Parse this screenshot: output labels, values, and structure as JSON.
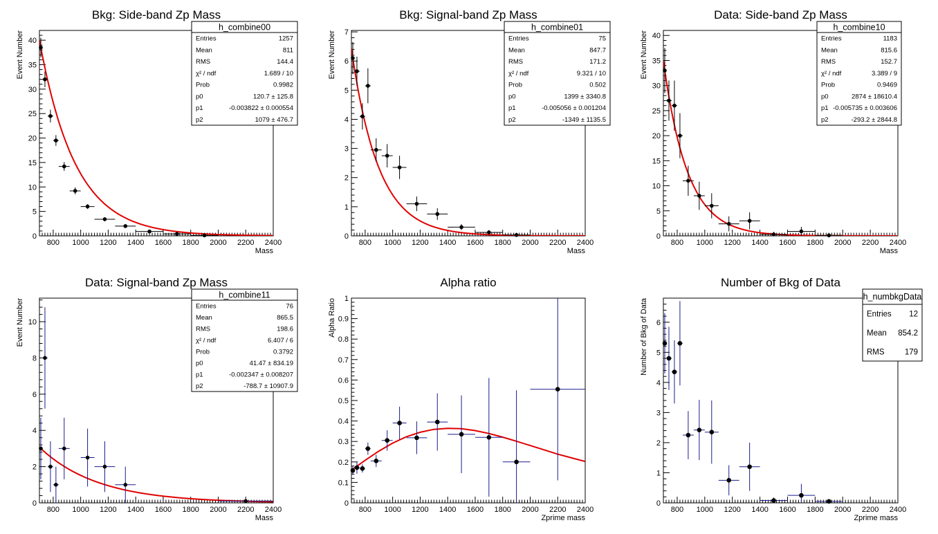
{
  "chart_data": [
    {
      "type": "scatter",
      "title": "Bkg: Side-band Zp Mass",
      "xlabel": "Mass",
      "ylabel": "Event Number",
      "xlim": [
        700,
        2400
      ],
      "ylim": [
        0,
        42
      ],
      "xticks": [
        800,
        1000,
        1200,
        1400,
        1600,
        1800,
        2000,
        2200,
        2400
      ],
      "yticks": [
        0,
        5,
        10,
        15,
        20,
        25,
        30,
        35,
        40
      ],
      "fit": {
        "p0": 120.7,
        "p1": -0.003822,
        "p2": 1079,
        "model": "exp"
      },
      "points": [
        {
          "x": 710,
          "y": 38.5,
          "xerr": 10,
          "yerr": 2.0
        },
        {
          "x": 740,
          "y": 32.0,
          "xerr": 20,
          "yerr": 1.6
        },
        {
          "x": 780,
          "y": 24.5,
          "xerr": 20,
          "yerr": 1.3
        },
        {
          "x": 820,
          "y": 19.5,
          "xerr": 20,
          "yerr": 1.1
        },
        {
          "x": 880,
          "y": 14.2,
          "xerr": 40,
          "yerr": 0.9
        },
        {
          "x": 960,
          "y": 9.2,
          "xerr": 40,
          "yerr": 0.7
        },
        {
          "x": 1050,
          "y": 6.0,
          "xerr": 50,
          "yerr": 0.5
        },
        {
          "x": 1175,
          "y": 3.4,
          "xerr": 75,
          "yerr": 0.4
        },
        {
          "x": 1325,
          "y": 2.0,
          "xerr": 75,
          "yerr": 0.3
        },
        {
          "x": 1500,
          "y": 0.9,
          "xerr": 100,
          "yerr": 0.2
        },
        {
          "x": 1700,
          "y": 0.4,
          "xerr": 100,
          "yerr": 0.15
        },
        {
          "x": 1900,
          "y": 0.1,
          "xerr": 100,
          "yerr": 0.1
        }
      ],
      "stats": {
        "name": "h_combine00",
        "rows": [
          [
            "Entries",
            "1257"
          ],
          [
            "Mean",
            "811"
          ],
          [
            "RMS",
            "144.4"
          ],
          [
            "χ² / ndf",
            "1.689 / 10"
          ],
          [
            "Prob",
            "0.9982"
          ],
          [
            "p0",
            "120.7 ± 125.8"
          ],
          [
            "p1",
            "-0.003822 ± 0.000554"
          ],
          [
            "p2",
            "1079 ± 476.7"
          ]
        ]
      }
    },
    {
      "type": "scatter",
      "title": "Bkg: Signal-band Zp Mass",
      "xlabel": "Mass",
      "ylabel": "Event Number",
      "xlim": [
        700,
        2400
      ],
      "ylim": [
        0,
        7.05
      ],
      "xticks": [
        800,
        1000,
        1200,
        1400,
        1600,
        1800,
        2000,
        2200,
        2400
      ],
      "yticks": [
        0,
        1,
        2,
        3,
        4,
        5,
        6,
        7
      ],
      "fit": {
        "p0": 1399,
        "p1": -0.005056,
        "p2": -1349,
        "model": "exp"
      },
      "points": [
        {
          "x": 710,
          "y": 6.1,
          "xerr": 10,
          "yerr": 0.55
        },
        {
          "x": 740,
          "y": 5.65,
          "xerr": 20,
          "yerr": 0.5
        },
        {
          "x": 780,
          "y": 4.1,
          "xerr": 20,
          "yerr": 0.45
        },
        {
          "x": 820,
          "y": 5.15,
          "xerr": 20,
          "yerr": 0.6
        },
        {
          "x": 880,
          "y": 2.95,
          "xerr": 40,
          "yerr": 0.4
        },
        {
          "x": 960,
          "y": 2.75,
          "xerr": 40,
          "yerr": 0.4
        },
        {
          "x": 1050,
          "y": 2.35,
          "xerr": 50,
          "yerr": 0.4
        },
        {
          "x": 1175,
          "y": 1.1,
          "xerr": 75,
          "yerr": 0.25
        },
        {
          "x": 1325,
          "y": 0.75,
          "xerr": 75,
          "yerr": 0.2
        },
        {
          "x": 1500,
          "y": 0.3,
          "xerr": 100,
          "yerr": 0.1
        },
        {
          "x": 1700,
          "y": 0.12,
          "xerr": 100,
          "yerr": 0.08
        },
        {
          "x": 1900,
          "y": 0.03,
          "xerr": 100,
          "yerr": 0.05
        }
      ],
      "stats": {
        "name": "h_combine01",
        "rows": [
          [
            "Entries",
            "75"
          ],
          [
            "Mean",
            "847.7"
          ],
          [
            "RMS",
            "171.2"
          ],
          [
            "χ² / ndf",
            "9.321 / 10"
          ],
          [
            "Prob",
            "0.502"
          ],
          [
            "p0",
            "1399 ± 3340.8"
          ],
          [
            "p1",
            "-0.005056 ± 0.001204"
          ],
          [
            "p2",
            "-1349 ± 1135.5"
          ]
        ]
      }
    },
    {
      "type": "scatter",
      "title": "Data: Side-band Zp Mass",
      "xlabel": "Mass",
      "ylabel": "Event Number",
      "xlim": [
        700,
        2400
      ],
      "ylim": [
        0,
        41
      ],
      "xticks": [
        800,
        1000,
        1200,
        1400,
        1600,
        1800,
        2000,
        2200,
        2400
      ],
      "yticks": [
        0,
        5,
        10,
        15,
        20,
        25,
        30,
        35,
        40
      ],
      "fit": {
        "p0": 2874,
        "p1": -0.005735,
        "p2": -293.2,
        "model": "exp"
      },
      "points": [
        {
          "x": 710,
          "y": 33.0,
          "xerr": 10,
          "yerr": 4.5
        },
        {
          "x": 740,
          "y": 27.0,
          "xerr": 20,
          "yerr": 4.0
        },
        {
          "x": 780,
          "y": 26.0,
          "xerr": 20,
          "yerr": 5.0
        },
        {
          "x": 820,
          "y": 20.0,
          "xerr": 20,
          "yerr": 4.5
        },
        {
          "x": 880,
          "y": 11.0,
          "xerr": 40,
          "yerr": 3.0
        },
        {
          "x": 960,
          "y": 8.0,
          "xerr": 40,
          "yerr": 2.8
        },
        {
          "x": 1050,
          "y": 6.0,
          "xerr": 50,
          "yerr": 2.5
        },
        {
          "x": 1175,
          "y": 2.4,
          "xerr": 75,
          "yerr": 1.5
        },
        {
          "x": 1325,
          "y": 3.0,
          "xerr": 75,
          "yerr": 1.7
        },
        {
          "x": 1500,
          "y": 0.3,
          "xerr": 100,
          "yerr": 0.5
        },
        {
          "x": 1700,
          "y": 0.9,
          "xerr": 100,
          "yerr": 0.9
        },
        {
          "x": 1900,
          "y": 0.1,
          "xerr": 100,
          "yerr": 0.2
        }
      ],
      "stats": {
        "name": "h_combine10",
        "rows": [
          [
            "Entries",
            "1183"
          ],
          [
            "Mean",
            "815.6"
          ],
          [
            "RMS",
            "152.7"
          ],
          [
            "χ² / ndf",
            "3.389 / 9"
          ],
          [
            "Prob",
            "0.9469"
          ],
          [
            "p0",
            "2874 ± 18610.4"
          ],
          [
            "p1",
            "-0.005735 ± 0.003606"
          ],
          [
            "p2",
            "-293.2 ± 2844.8"
          ]
        ]
      }
    },
    {
      "type": "scatter",
      "title": "Data: Signal-band Zp Mass",
      "xlabel": "Mass",
      "ylabel": "Event Number",
      "xlim": [
        700,
        2400
      ],
      "ylim": [
        0,
        11.3
      ],
      "xticks": [
        800,
        1000,
        1200,
        1400,
        1600,
        1800,
        2000,
        2200,
        2400
      ],
      "yticks": [
        0,
        2,
        4,
        6,
        8,
        10
      ],
      "fit": {
        "p0": 41.47,
        "p1": -0.002347,
        "p2": -788.7,
        "model": "exp"
      },
      "points": [
        {
          "x": 710,
          "y": 3.0,
          "xerr": 10,
          "yerr": 1.7
        },
        {
          "x": 740,
          "y": 8.0,
          "xerr": 20,
          "yerr": 2.8
        },
        {
          "x": 780,
          "y": 2.0,
          "xerr": 20,
          "yerr": 1.4
        },
        {
          "x": 820,
          "y": 1.0,
          "xerr": 20,
          "yerr": 1.0
        },
        {
          "x": 880,
          "y": 3.0,
          "xerr": 40,
          "yerr": 1.7
        },
        {
          "x": 1050,
          "y": 2.5,
          "xerr": 50,
          "yerr": 1.6
        },
        {
          "x": 1175,
          "y": 2.0,
          "xerr": 75,
          "yerr": 1.4
        },
        {
          "x": 1325,
          "y": 1.0,
          "xerr": 75,
          "yerr": 1.0
        },
        {
          "x": 2200,
          "y": 0.1,
          "xerr": 200,
          "yerr": 0.1
        }
      ],
      "stats": {
        "name": "h_combine11",
        "rows": [
          [
            "Entries",
            "76"
          ],
          [
            "Mean",
            "865.5"
          ],
          [
            "RMS",
            "198.6"
          ],
          [
            "χ² / ndf",
            "6.407 / 6"
          ],
          [
            "Prob",
            "0.3792"
          ],
          [
            "p0",
            "41.47 ± 834.19"
          ],
          [
            "p1",
            "-0.002347 ± 0.008207"
          ],
          [
            "p2",
            "-788.7 ± 10907.9"
          ]
        ]
      }
    },
    {
      "type": "scatter",
      "title": "Alpha ratio",
      "xlabel": "Zprime mass",
      "ylabel": "Alpha Ratio",
      "xlim": [
        700,
        2400
      ],
      "ylim": [
        0,
        1
      ],
      "xticks": [
        800,
        1000,
        1200,
        1400,
        1600,
        1800,
        2000,
        2200,
        2400
      ],
      "yticks": [
        0,
        0.1,
        0.2,
        0.3,
        0.4,
        0.5,
        0.6,
        0.7,
        0.8,
        0.9,
        1
      ],
      "fit_curve": [
        [
          700,
          0.16
        ],
        [
          800,
          0.208
        ],
        [
          900,
          0.253
        ],
        [
          1000,
          0.292
        ],
        [
          1100,
          0.323
        ],
        [
          1200,
          0.345
        ],
        [
          1300,
          0.359
        ],
        [
          1400,
          0.364
        ],
        [
          1500,
          0.362
        ],
        [
          1600,
          0.353
        ],
        [
          1700,
          0.339
        ],
        [
          1800,
          0.321
        ],
        [
          1900,
          0.301
        ],
        [
          2000,
          0.28
        ],
        [
          2100,
          0.259
        ],
        [
          2200,
          0.238
        ],
        [
          2300,
          0.22
        ],
        [
          2400,
          0.202
        ]
      ],
      "points": [
        {
          "x": 710,
          "y": 0.158,
          "xerr": 10,
          "yerr": 0.02
        },
        {
          "x": 740,
          "y": 0.172,
          "xerr": 20,
          "yerr": 0.03
        },
        {
          "x": 780,
          "y": 0.168,
          "xerr": 20,
          "yerr": 0.02
        },
        {
          "x": 820,
          "y": 0.265,
          "xerr": 20,
          "yerr": 0.03
        },
        {
          "x": 880,
          "y": 0.205,
          "xerr": 40,
          "yerr": 0.03
        },
        {
          "x": 960,
          "y": 0.305,
          "xerr": 40,
          "yerr": 0.05
        },
        {
          "x": 1050,
          "y": 0.39,
          "xerr": 50,
          "yerr": 0.08
        },
        {
          "x": 1175,
          "y": 0.318,
          "xerr": 75,
          "yerr": 0.08
        },
        {
          "x": 1325,
          "y": 0.395,
          "xerr": 75,
          "yerr": 0.14
        },
        {
          "x": 1500,
          "y": 0.335,
          "xerr": 100,
          "yerr": 0.19
        },
        {
          "x": 1700,
          "y": 0.32,
          "xerr": 100,
          "yerr": 0.29
        },
        {
          "x": 1900,
          "y": 0.2,
          "xerr": 100,
          "yerr": 0.35
        },
        {
          "x": 2200,
          "y": 0.555,
          "xerr": 200,
          "yerr": 0.445
        }
      ],
      "stats": null
    },
    {
      "type": "scatter",
      "title": "Number of Bkg of Data",
      "xlabel": "Zprime mass",
      "ylabel": "Number of Bkg of Data",
      "xlim": [
        700,
        2400
      ],
      "ylim": [
        0,
        6.8
      ],
      "xticks": [
        800,
        1000,
        1200,
        1400,
        1600,
        1800,
        2000,
        2200,
        2400
      ],
      "yticks": [
        0,
        1,
        2,
        3,
        4,
        5,
        6
      ],
      "points": [
        {
          "x": 710,
          "y": 5.3,
          "xerr": 10,
          "yerr": 1.0
        },
        {
          "x": 740,
          "y": 4.8,
          "xerr": 20,
          "yerr": 1.05
        },
        {
          "x": 780,
          "y": 4.35,
          "xerr": 20,
          "yerr": 1.05
        },
        {
          "x": 820,
          "y": 5.3,
          "xerr": 20,
          "yerr": 1.4
        },
        {
          "x": 880,
          "y": 2.25,
          "xerr": 40,
          "yerr": 0.8
        },
        {
          "x": 960,
          "y": 2.42,
          "xerr": 40,
          "yerr": 1.0
        },
        {
          "x": 1050,
          "y": 2.35,
          "xerr": 50,
          "yerr": 1.05
        },
        {
          "x": 1175,
          "y": 0.75,
          "xerr": 75,
          "yerr": 0.5
        },
        {
          "x": 1325,
          "y": 1.2,
          "xerr": 75,
          "yerr": 0.8
        },
        {
          "x": 1500,
          "y": 0.08,
          "xerr": 100,
          "yerr": 0.1
        },
        {
          "x": 1700,
          "y": 0.25,
          "xerr": 100,
          "yerr": 0.38
        },
        {
          "x": 1900,
          "y": 0.05,
          "xerr": 100,
          "yerr": 0.07
        }
      ],
      "stats": {
        "name": "h_numbkgData",
        "big": true,
        "rows": [
          [
            "Entries",
            "12"
          ],
          [
            "Mean",
            "854.2"
          ],
          [
            "RMS",
            "179"
          ]
        ]
      }
    }
  ],
  "colors": {
    "fit": "#e00000",
    "marker": "#000000",
    "errorbar": "#1a1a8c",
    "axis": "#000000"
  }
}
